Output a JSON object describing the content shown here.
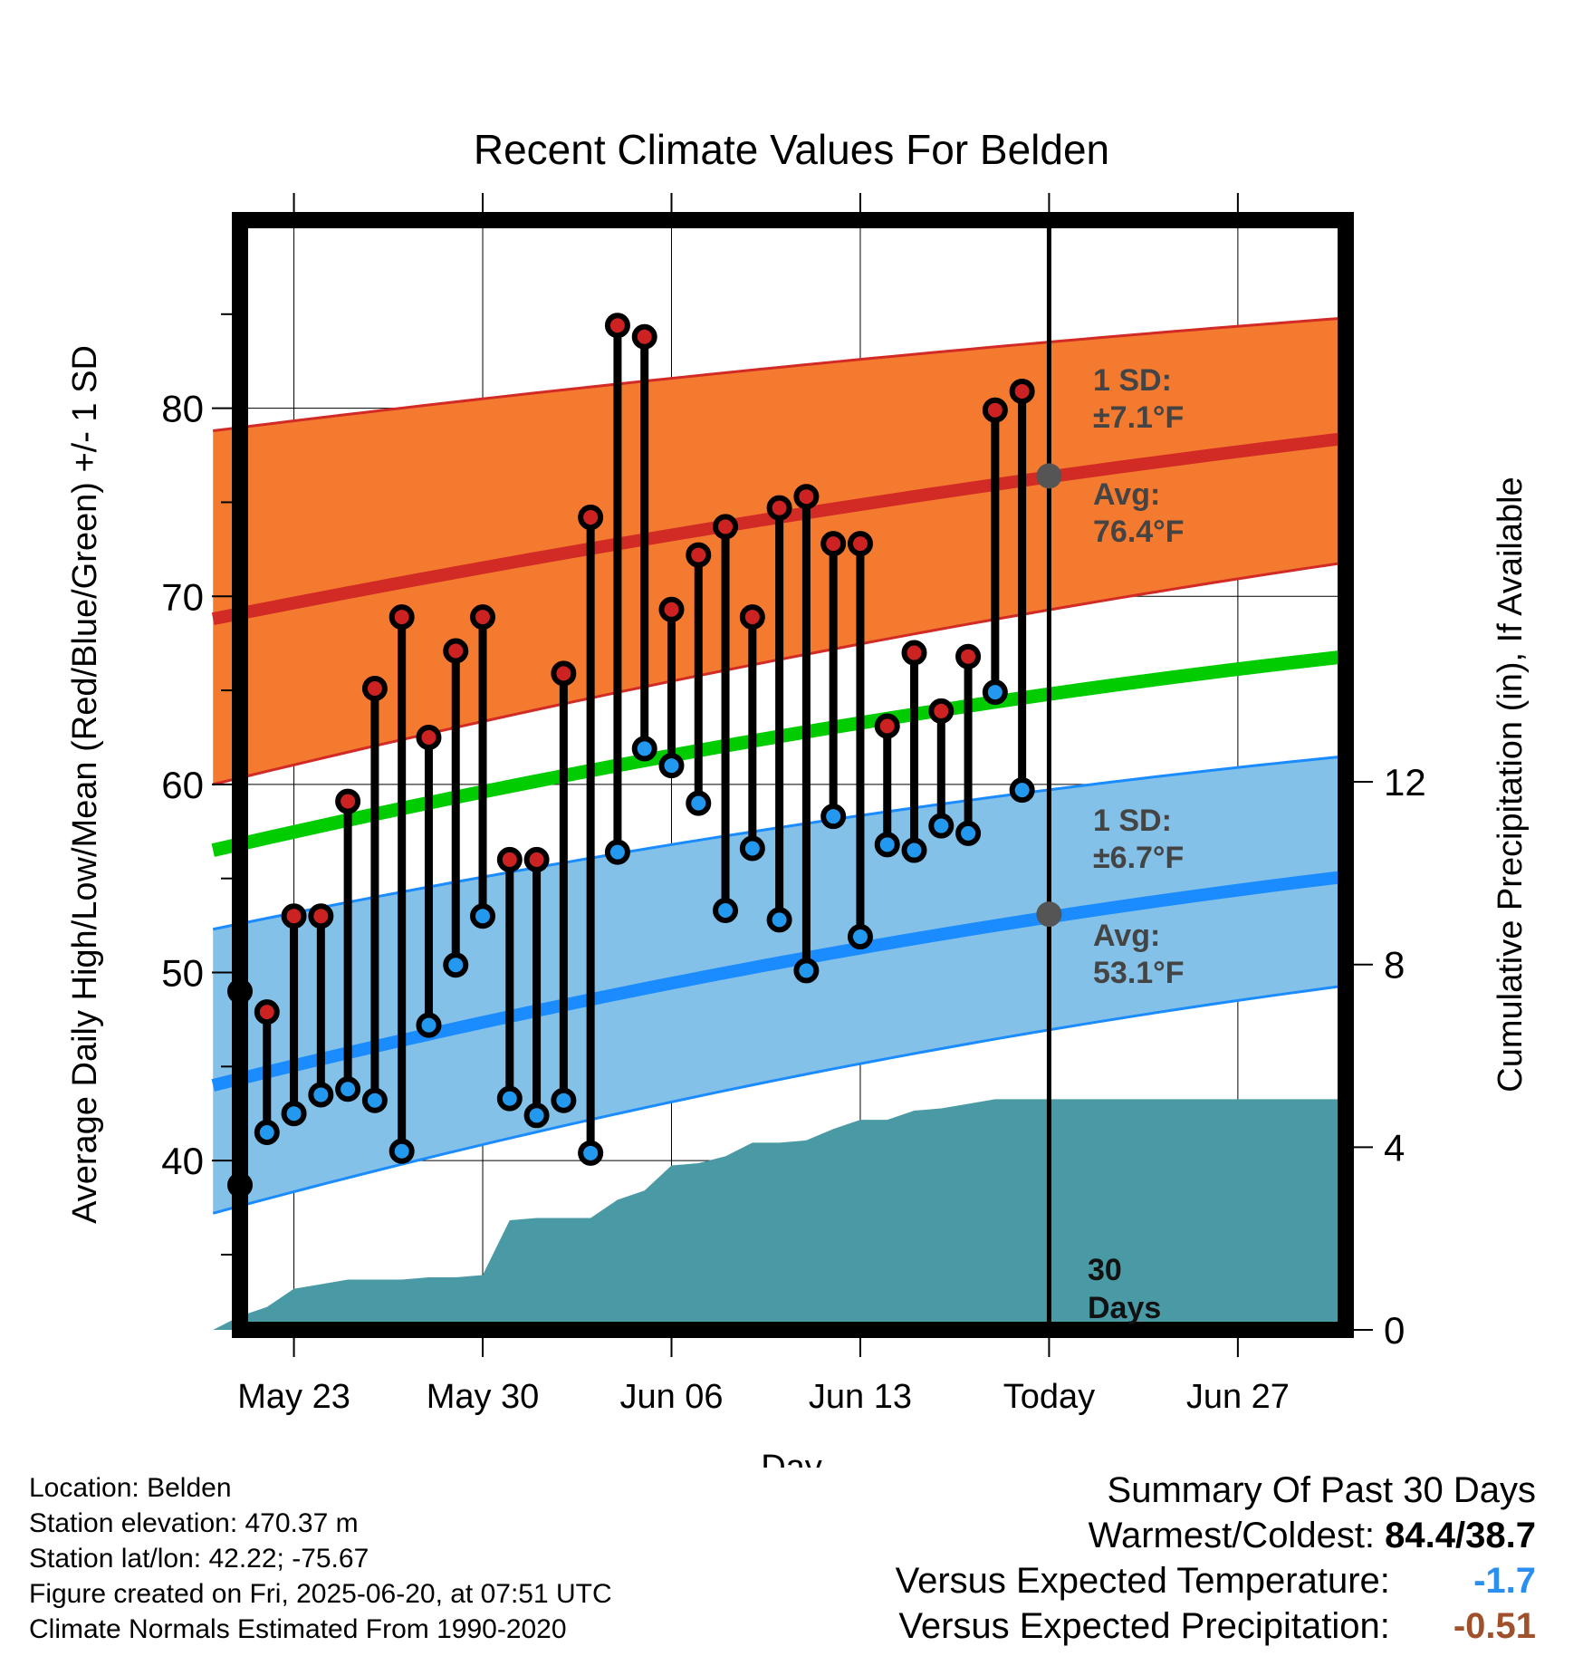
{
  "chart_data": {
    "type": "line",
    "title": "Recent Climate Values For Belden",
    "xlabel": "Day",
    "ylabel": "Average Daily High/Low/Mean (Red/Blue/Green) +/- 1 SD",
    "y2label": "Cumulative Precipitation (in), If Available",
    "x_range_days": [
      -30,
      11
    ],
    "ylim": [
      31,
      90
    ],
    "y2lim": [
      0,
      24.3
    ],
    "yticks": [
      40,
      50,
      60,
      70,
      80
    ],
    "y2ticks": [
      0,
      4,
      8,
      12
    ],
    "xticks": [
      {
        "day": -28,
        "label": "May 23"
      },
      {
        "day": -21,
        "label": "May 30"
      },
      {
        "day": -14,
        "label": "Jun 06"
      },
      {
        "day": -7,
        "label": "Jun 13"
      },
      {
        "day": 0,
        "label": "Today"
      },
      {
        "day": 7,
        "label": "Jun 27"
      }
    ],
    "grid": true,
    "daily": {
      "day": [
        -30,
        -29,
        -28,
        -27,
        -26,
        -25,
        -24,
        -23,
        -22,
        -21,
        -20,
        -19,
        -18,
        -17,
        -16,
        -15,
        -14,
        -13,
        -12,
        -11,
        -10,
        -9,
        -8,
        -7,
        -6,
        -5,
        -4,
        -3,
        -2,
        -1
      ],
      "high": [
        49.0,
        47.9,
        53.0,
        53.0,
        59.1,
        65.1,
        68.9,
        62.5,
        67.1,
        68.9,
        56.0,
        56.0,
        65.9,
        74.2,
        84.4,
        83.8,
        69.3,
        72.2,
        73.7,
        68.9,
        74.7,
        75.3,
        72.8,
        72.8,
        63.1,
        67.0,
        63.9,
        66.8,
        79.9,
        80.9
      ],
      "low": [
        38.7,
        41.5,
        42.5,
        43.5,
        43.8,
        43.2,
        40.5,
        47.2,
        50.4,
        53.0,
        43.3,
        42.4,
        43.2,
        40.4,
        56.4,
        61.9,
        61.0,
        59.0,
        53.3,
        56.6,
        52.8,
        50.1,
        58.3,
        51.9,
        56.8,
        56.5,
        57.8,
        57.4,
        64.9,
        59.7
      ]
    },
    "normals": {
      "day": [
        -31,
        11
      ],
      "high_avg": [
        68.8,
        78.4
      ],
      "high_sd_upper": [
        78.8,
        84.8
      ],
      "high_sd_lower": [
        60.0,
        71.8
      ],
      "low_avg": [
        44.0,
        55.1
      ],
      "low_sd_upper": [
        52.3,
        61.5
      ],
      "low_sd_lower": [
        37.2,
        49.3
      ],
      "mean_avg": [
        56.5,
        66.8
      ]
    },
    "precip_cumulative": {
      "day": [
        -31,
        -30,
        -29,
        -28,
        -27,
        -26,
        -25,
        -24,
        -23,
        -22,
        -21,
        -20,
        -19,
        -18,
        -17,
        -16,
        -15,
        -14,
        -13,
        -12,
        -11,
        -10,
        -9,
        -8,
        -7,
        -6,
        -5,
        -4,
        -3,
        -2,
        -1,
        0,
        11
      ],
      "value": [
        0.0,
        0.3,
        0.5,
        0.9,
        1.0,
        1.1,
        1.1,
        1.1,
        1.15,
        1.15,
        1.2,
        2.4,
        2.45,
        2.45,
        2.45,
        2.85,
        3.05,
        3.6,
        3.65,
        3.8,
        4.1,
        4.1,
        4.15,
        4.4,
        4.6,
        4.6,
        4.8,
        4.85,
        4.95,
        5.05,
        5.05,
        5.05,
        5.05
      ]
    },
    "annotations": {
      "high_sd_label": "1 SD:",
      "high_sd_value": "±7.1°F",
      "high_avg_label": "Avg:",
      "high_avg_value": "76.4°F",
      "low_sd_label": "1 SD:",
      "low_sd_value": "±6.7°F",
      "low_avg_label": "Avg:",
      "low_avg_value": "53.1°F",
      "window_label_1": "30",
      "window_label_2": "Days"
    },
    "today_markers": {
      "high_avg": 76.4,
      "low_avg": 53.1
    },
    "colors": {
      "high_band": "#f47a30",
      "high_line": "#d22a25",
      "low_band": "#84c1e8",
      "low_line": "#1a8cff",
      "mean_line": "#00cc00",
      "precip": "#4a9aa5",
      "high_marker": "#cc2222",
      "low_marker": "#2299ee",
      "annotation": "#444444"
    }
  },
  "info": {
    "location": "Location: Belden",
    "elevation": "Station elevation: 470.37 m",
    "latlon": "Station lat/lon: 42.22; -75.67",
    "created": "Figure created on Fri, 2025-06-20, at 07:51 UTC",
    "normals": "Climate Normals Estimated From 1990-2020"
  },
  "summary": {
    "title": "Summary Of Past 30 Days",
    "warmest_label": "Warmest/Coldest:",
    "warmest_value": "84.4/38.7",
    "temp_label": "Versus Expected Temperature:",
    "temp_value": "-1.7",
    "temp_color": "#2a8ff0",
    "precip_label": "Versus Expected Precipitation:",
    "precip_value": "-0.51",
    "precip_color": "#a0502a"
  }
}
